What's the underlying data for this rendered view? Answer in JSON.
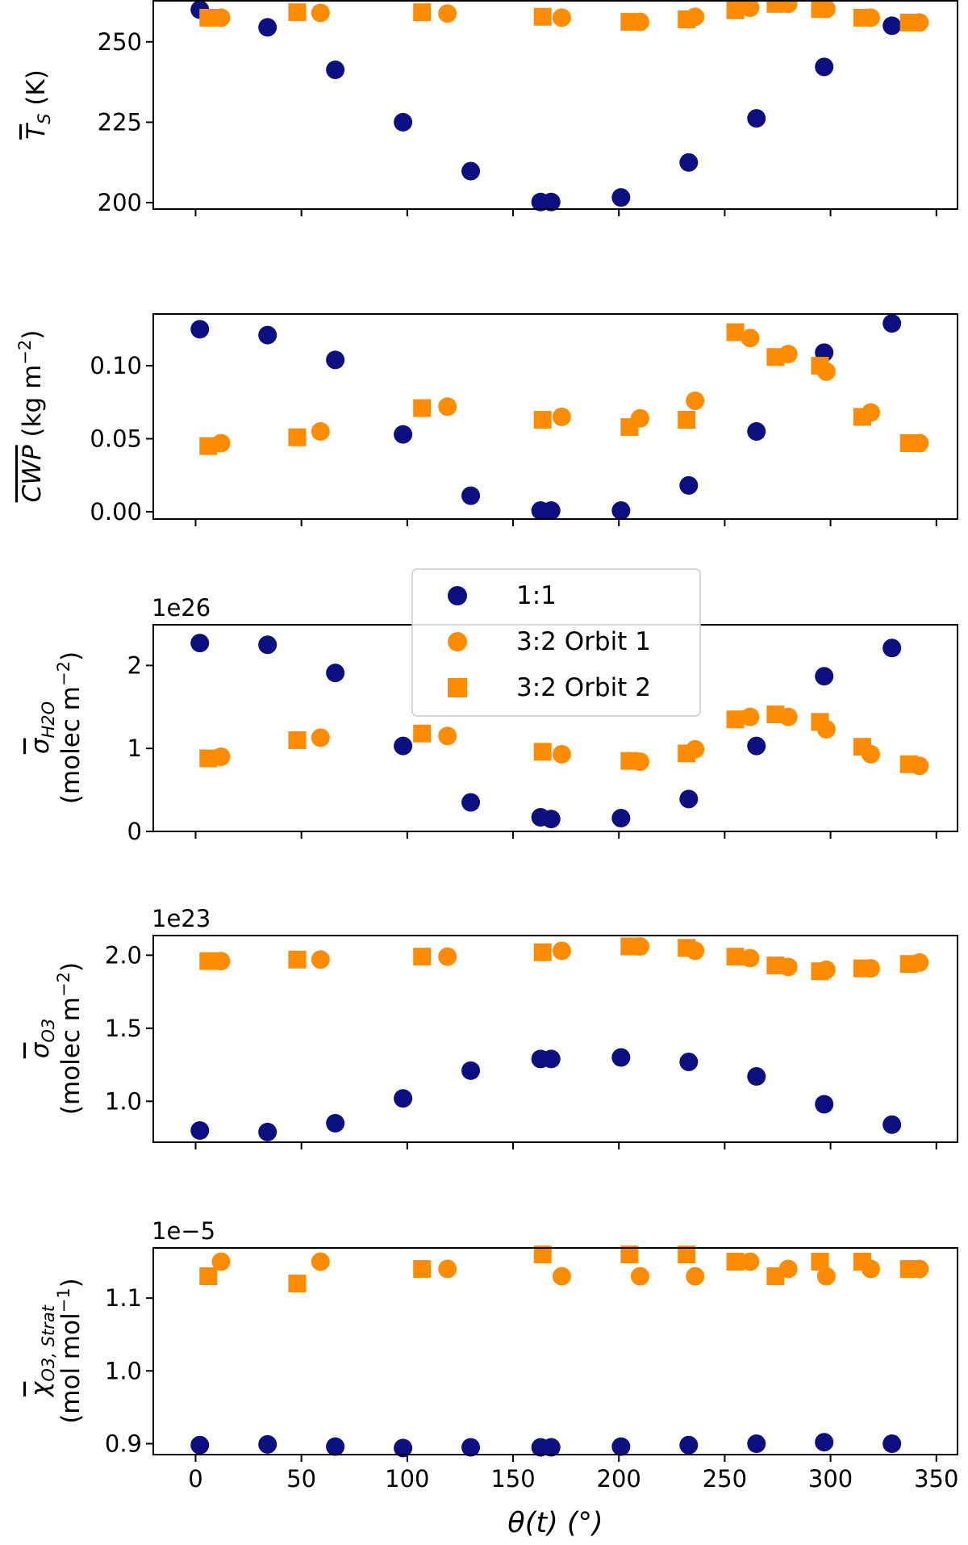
{
  "figure": {
    "colors": {
      "one_to_one": "#0c0f80",
      "three_two": "#ff8c00"
    }
  },
  "legend": {
    "entries": [
      {
        "label": "1:1",
        "marker": "circle",
        "color": "#0c0f80"
      },
      {
        "label": "3:2 Orbit 1",
        "marker": "circle",
        "color": "#ff8c00"
      },
      {
        "label": "3:2 Orbit 2",
        "marker": "square",
        "color": "#ff8c00"
      }
    ]
  },
  "chart_data": [
    {
      "type": "scatter",
      "panel": "ts",
      "ylabel_parts": {
        "symbol": "T",
        "subscript": "S",
        "unit": " (K)"
      },
      "offset_text": "",
      "xlim": [
        -20,
        360
      ],
      "ylim": [
        198,
        263
      ],
      "yticks": [
        200,
        225,
        250
      ],
      "ytick_labels": [
        "200",
        "225",
        "250"
      ],
      "xticks": [
        0,
        50,
        100,
        150,
        200,
        250,
        300,
        350
      ],
      "show_xtick_labels": false,
      "series": [
        {
          "name": "1:1",
          "marker": "circle",
          "x": [
            2,
            34,
            66,
            98,
            130,
            163,
            168,
            201,
            233,
            265,
            297,
            329
          ],
          "y": [
            260,
            254.5,
            241.3,
            225,
            209.8,
            200.2,
            200.2,
            201.6,
            212.5,
            226.2,
            242.2,
            255
          ]
        },
        {
          "name": "3:2 Orbit 1",
          "marker": "circle",
          "x": [
            12,
            59,
            119,
            173,
            210,
            236,
            262,
            280,
            298,
            319,
            342
          ],
          "y": [
            257.5,
            259,
            258.8,
            257.5,
            256.2,
            257.8,
            260.6,
            261.8,
            260.2,
            257.5,
            256
          ]
        },
        {
          "name": "3:2 Orbit 2",
          "marker": "square",
          "x": [
            6,
            48,
            107,
            164,
            205,
            232,
            255,
            274,
            295,
            315,
            337
          ],
          "y": [
            257.5,
            259.2,
            259.2,
            257.8,
            256.2,
            257,
            259.8,
            261.8,
            260.2,
            257.5,
            256
          ]
        }
      ]
    },
    {
      "type": "scatter",
      "panel": "cwp",
      "ylabel_parts": {
        "symbol": "CWP",
        "unit": " (kg m",
        "superscript": "−2",
        "close": ")"
      },
      "offset_text": "",
      "xlim": [
        -20,
        360
      ],
      "ylim": [
        -0.005,
        0.136
      ],
      "yticks": [
        0.0,
        0.05,
        0.1
      ],
      "ytick_labels": [
        "0.00",
        "0.05",
        "0.10"
      ],
      "xticks": [
        0,
        50,
        100,
        150,
        200,
        250,
        300,
        350
      ],
      "show_xtick_labels": false,
      "series": [
        {
          "name": "1:1",
          "marker": "circle",
          "x": [
            2,
            34,
            66,
            98,
            130,
            163,
            168,
            201,
            233,
            265,
            297,
            329
          ],
          "y": [
            0.125,
            0.121,
            0.104,
            0.053,
            0.011,
            0.0008,
            0.0008,
            0.0008,
            0.018,
            0.055,
            0.109,
            0.129
          ]
        },
        {
          "name": "3:2 Orbit 1",
          "marker": "circle",
          "x": [
            12,
            59,
            119,
            173,
            210,
            236,
            262,
            280,
            298,
            319,
            342
          ],
          "y": [
            0.047,
            0.055,
            0.072,
            0.065,
            0.064,
            0.076,
            0.119,
            0.108,
            0.096,
            0.068,
            0.047
          ]
        },
        {
          "name": "3:2 Orbit 2",
          "marker": "square",
          "x": [
            6,
            48,
            107,
            164,
            205,
            232,
            255,
            274,
            295,
            315,
            337
          ],
          "y": [
            0.045,
            0.051,
            0.071,
            0.063,
            0.058,
            0.063,
            0.123,
            0.106,
            0.1,
            0.065,
            0.047
          ]
        }
      ]
    },
    {
      "type": "scatter",
      "panel": "h2o",
      "ylabel_parts": {
        "symbol": "σ",
        "subscript": "H2O",
        "line2": "(molec m",
        "superscript": "−2",
        "close": ")"
      },
      "offset_text": "1e26",
      "xlim": [
        -20,
        360
      ],
      "ylim": [
        0,
        2.5
      ],
      "yticks": [
        0,
        1,
        2
      ],
      "ytick_labels": [
        "0",
        "1",
        "2"
      ],
      "xticks": [
        0,
        50,
        100,
        150,
        200,
        250,
        300,
        350
      ],
      "show_xtick_labels": false,
      "series": [
        {
          "name": "1:1",
          "marker": "circle",
          "x": [
            2,
            34,
            66,
            98,
            130,
            163,
            168,
            201,
            233,
            265,
            297,
            329
          ],
          "y": [
            2.27,
            2.25,
            1.91,
            1.03,
            0.35,
            0.17,
            0.15,
            0.16,
            0.39,
            1.03,
            1.87,
            2.21
          ]
        },
        {
          "name": "3:2 Orbit 1",
          "marker": "circle",
          "x": [
            12,
            59,
            119,
            173,
            210,
            236,
            262,
            280,
            298,
            319,
            342
          ],
          "y": [
            0.9,
            1.13,
            1.15,
            0.93,
            0.84,
            0.99,
            1.38,
            1.38,
            1.23,
            0.93,
            0.79
          ]
        },
        {
          "name": "3:2 Orbit 2",
          "marker": "square",
          "x": [
            6,
            48,
            107,
            164,
            205,
            232,
            255,
            274,
            295,
            315,
            337
          ],
          "y": [
            0.88,
            1.1,
            1.18,
            0.96,
            0.85,
            0.94,
            1.35,
            1.41,
            1.32,
            1.02,
            0.81
          ]
        }
      ]
    },
    {
      "type": "scatter",
      "panel": "o3",
      "ylabel_parts": {
        "symbol": "σ",
        "subscript": "O3",
        "line2": "(molec m",
        "superscript": "−2",
        "close": ")"
      },
      "offset_text": "1e23",
      "xlim": [
        -20,
        360
      ],
      "ylim": [
        0.72,
        2.14
      ],
      "yticks": [
        1.0,
        1.5,
        2.0
      ],
      "ytick_labels": [
        "1.0",
        "1.5",
        "2.0"
      ],
      "xticks": [
        0,
        50,
        100,
        150,
        200,
        250,
        300,
        350
      ],
      "show_xtick_labels": false,
      "series": [
        {
          "name": "1:1",
          "marker": "circle",
          "x": [
            2,
            34,
            66,
            98,
            130,
            163,
            168,
            201,
            233,
            265,
            297,
            329
          ],
          "y": [
            0.8,
            0.79,
            0.85,
            1.02,
            1.21,
            1.29,
            1.29,
            1.3,
            1.27,
            1.17,
            0.98,
            0.84
          ]
        },
        {
          "name": "3:2 Orbit 1",
          "marker": "circle",
          "x": [
            12,
            59,
            119,
            173,
            210,
            236,
            262,
            280,
            298,
            319,
            342
          ],
          "y": [
            1.96,
            1.97,
            1.99,
            2.03,
            2.06,
            2.03,
            1.98,
            1.92,
            1.9,
            1.91,
            1.95
          ]
        },
        {
          "name": "3:2 Orbit 2",
          "marker": "square",
          "x": [
            6,
            48,
            107,
            164,
            205,
            232,
            255,
            274,
            295,
            315,
            337
          ],
          "y": [
            1.96,
            1.97,
            1.99,
            2.02,
            2.06,
            2.05,
            1.99,
            1.93,
            1.89,
            1.91,
            1.94
          ]
        }
      ]
    },
    {
      "type": "scatter",
      "panel": "xo3",
      "ylabel_parts": {
        "symbol": "χ",
        "subscript": "O3, Strat",
        "line2": "(mol mol",
        "superscript": "−1",
        "close": ")"
      },
      "offset_text": "1e−5",
      "xlim": [
        -20,
        360
      ],
      "ylim": [
        0.885,
        1.17
      ],
      "yticks": [
        0.9,
        1.0,
        1.1
      ],
      "ytick_labels": [
        "0.9",
        "1.0",
        "1.1"
      ],
      "xticks": [
        0,
        50,
        100,
        150,
        200,
        250,
        300,
        350
      ],
      "xtick_labels": [
        "0",
        "50",
        "100",
        "150",
        "200",
        "250",
        "300",
        "350"
      ],
      "show_xtick_labels": true,
      "xlabel": "θ(t) (°)",
      "series": [
        {
          "name": "1:1",
          "marker": "circle",
          "x": [
            2,
            34,
            66,
            98,
            130,
            163,
            168,
            201,
            233,
            265,
            297,
            329
          ],
          "y": [
            0.898,
            0.899,
            0.896,
            0.894,
            0.895,
            0.895,
            0.895,
            0.896,
            0.898,
            0.9,
            0.902,
            0.9
          ]
        },
        {
          "name": "3:2 Orbit 1",
          "marker": "circle",
          "x": [
            12,
            59,
            119,
            173,
            210,
            236,
            262,
            280,
            298,
            319,
            342
          ],
          "y": [
            1.15,
            1.15,
            1.14,
            1.13,
            1.13,
            1.13,
            1.15,
            1.14,
            1.13,
            1.14,
            1.14
          ]
        },
        {
          "name": "3:2 Orbit 2",
          "marker": "square",
          "x": [
            6,
            48,
            107,
            164,
            205,
            232,
            255,
            274,
            295,
            315,
            337
          ],
          "y": [
            1.13,
            1.12,
            1.14,
            1.16,
            1.16,
            1.16,
            1.15,
            1.13,
            1.15,
            1.15,
            1.14
          ]
        }
      ]
    }
  ]
}
